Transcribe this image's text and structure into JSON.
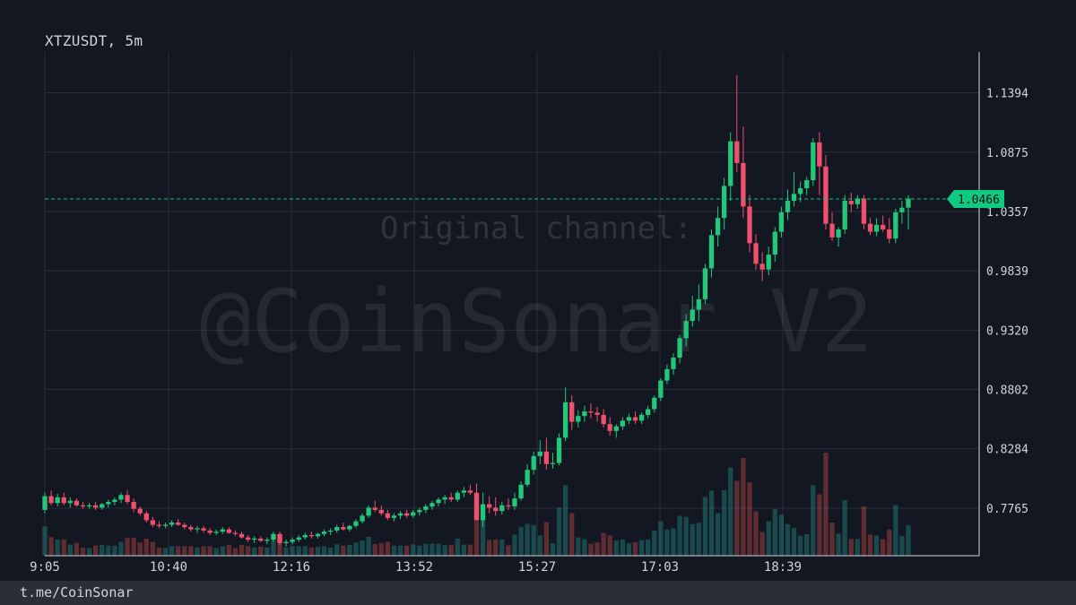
{
  "header": {
    "title": "XTZUSDT, 5m"
  },
  "watermark": {
    "line1": "Original channel:",
    "line2": "@CoinSonar V2"
  },
  "footer": {
    "link": "t.me/CoinSonar"
  },
  "colors": {
    "up": "#26a69a",
    "down": "#ef5350",
    "upBright": "#22c77a",
    "downBright": "#f0506e",
    "grid": "#2a2e39",
    "bg": "#131722",
    "price": "#0ecb81"
  },
  "chart_data": {
    "type": "candlestick",
    "symbol": "XTZUSDT",
    "interval": "5m",
    "ylim": [
      0.735,
      1.175
    ],
    "y_ticks": [
      0.7765,
      0.8284,
      0.8802,
      0.932,
      0.9839,
      1.0357,
      1.0875,
      1.1394
    ],
    "y_tick_labels": [
      "0.7765",
      "0.8284",
      "0.8802",
      "0.9320",
      "0.9839",
      "1.0357",
      "1.0875",
      "1.1394"
    ],
    "x_tick_labels": [
      "9:05",
      "10:40",
      "12:16",
      "13:52",
      "15:27",
      "17:03",
      "18:39"
    ],
    "last_price": 1.0466,
    "last_price_label": "1.0466",
    "grid": true,
    "candles": [
      [
        0.775,
        0.79,
        0.772,
        0.787
      ],
      [
        0.787,
        0.792,
        0.779,
        0.781
      ],
      [
        0.781,
        0.789,
        0.778,
        0.786
      ],
      [
        0.786,
        0.79,
        0.779,
        0.781
      ],
      [
        0.781,
        0.786,
        0.777,
        0.783
      ],
      [
        0.783,
        0.785,
        0.778,
        0.779
      ],
      [
        0.779,
        0.782,
        0.776,
        0.778
      ],
      [
        0.778,
        0.781,
        0.776,
        0.779
      ],
      [
        0.779,
        0.782,
        0.775,
        0.777
      ],
      [
        0.777,
        0.781,
        0.775,
        0.78
      ],
      [
        0.78,
        0.784,
        0.777,
        0.782
      ],
      [
        0.782,
        0.786,
        0.779,
        0.784
      ],
      [
        0.784,
        0.79,
        0.781,
        0.788
      ],
      [
        0.788,
        0.792,
        0.78,
        0.782
      ],
      [
        0.782,
        0.785,
        0.773,
        0.776
      ],
      [
        0.776,
        0.778,
        0.77,
        0.772
      ],
      [
        0.772,
        0.774,
        0.764,
        0.766
      ],
      [
        0.766,
        0.769,
        0.76,
        0.762
      ],
      [
        0.762,
        0.765,
        0.759,
        0.761
      ],
      [
        0.761,
        0.764,
        0.759,
        0.762
      ],
      [
        0.762,
        0.766,
        0.76,
        0.764
      ],
      [
        0.764,
        0.767,
        0.761,
        0.762
      ],
      [
        0.762,
        0.764,
        0.758,
        0.76
      ],
      [
        0.76,
        0.762,
        0.756,
        0.758
      ],
      [
        0.758,
        0.761,
        0.755,
        0.759
      ],
      [
        0.759,
        0.761,
        0.755,
        0.757
      ],
      [
        0.757,
        0.759,
        0.753,
        0.755
      ],
      [
        0.755,
        0.758,
        0.753,
        0.756
      ],
      [
        0.756,
        0.76,
        0.754,
        0.758
      ],
      [
        0.758,
        0.76,
        0.754,
        0.755
      ],
      [
        0.755,
        0.757,
        0.752,
        0.754
      ],
      [
        0.754,
        0.756,
        0.75,
        0.751
      ],
      [
        0.751,
        0.753,
        0.747,
        0.749
      ],
      [
        0.749,
        0.752,
        0.746,
        0.75
      ],
      [
        0.75,
        0.752,
        0.747,
        0.748
      ],
      [
        0.748,
        0.751,
        0.745,
        0.749
      ],
      [
        0.749,
        0.756,
        0.747,
        0.754
      ],
      [
        0.754,
        0.756,
        0.744,
        0.746
      ],
      [
        0.746,
        0.749,
        0.743,
        0.747
      ],
      [
        0.747,
        0.751,
        0.745,
        0.749
      ],
      [
        0.749,
        0.753,
        0.747,
        0.751
      ],
      [
        0.751,
        0.755,
        0.749,
        0.753
      ],
      [
        0.753,
        0.756,
        0.75,
        0.752
      ],
      [
        0.752,
        0.755,
        0.75,
        0.754
      ],
      [
        0.754,
        0.758,
        0.752,
        0.756
      ],
      [
        0.756,
        0.759,
        0.753,
        0.757
      ],
      [
        0.757,
        0.762,
        0.755,
        0.76
      ],
      [
        0.76,
        0.764,
        0.757,
        0.758
      ],
      [
        0.758,
        0.762,
        0.756,
        0.761
      ],
      [
        0.761,
        0.767,
        0.759,
        0.765
      ],
      [
        0.765,
        0.772,
        0.763,
        0.77
      ],
      [
        0.77,
        0.779,
        0.768,
        0.777
      ],
      [
        0.777,
        0.783,
        0.773,
        0.775
      ],
      [
        0.775,
        0.779,
        0.77,
        0.772
      ],
      [
        0.772,
        0.775,
        0.766,
        0.768
      ],
      [
        0.768,
        0.772,
        0.765,
        0.77
      ],
      [
        0.77,
        0.774,
        0.767,
        0.772
      ],
      [
        0.772,
        0.775,
        0.768,
        0.77
      ],
      [
        0.77,
        0.775,
        0.768,
        0.773
      ],
      [
        0.773,
        0.777,
        0.77,
        0.775
      ],
      [
        0.775,
        0.78,
        0.772,
        0.778
      ],
      [
        0.778,
        0.783,
        0.775,
        0.781
      ],
      [
        0.781,
        0.786,
        0.778,
        0.784
      ],
      [
        0.784,
        0.788,
        0.78,
        0.786
      ],
      [
        0.786,
        0.79,
        0.782,
        0.784
      ],
      [
        0.784,
        0.792,
        0.782,
        0.79
      ],
      [
        0.79,
        0.795,
        0.786,
        0.792
      ],
      [
        0.792,
        0.797,
        0.788,
        0.79
      ],
      [
        0.79,
        0.798,
        0.77,
        0.766
      ],
      [
        0.766,
        0.79,
        0.76,
        0.78
      ],
      [
        0.78,
        0.787,
        0.772,
        0.777
      ],
      [
        0.777,
        0.786,
        0.77,
        0.774
      ],
      [
        0.774,
        0.782,
        0.771,
        0.779
      ],
      [
        0.779,
        0.785,
        0.775,
        0.778
      ],
      [
        0.778,
        0.79,
        0.775,
        0.785
      ],
      [
        0.785,
        0.8,
        0.783,
        0.797
      ],
      [
        0.797,
        0.815,
        0.795,
        0.81
      ],
      [
        0.81,
        0.826,
        0.806,
        0.822
      ],
      [
        0.822,
        0.836,
        0.815,
        0.826
      ],
      [
        0.826,
        0.838,
        0.81,
        0.815
      ],
      [
        0.815,
        0.825,
        0.811,
        0.816
      ],
      [
        0.816,
        0.842,
        0.814,
        0.838
      ],
      [
        0.838,
        0.882,
        0.835,
        0.869
      ],
      [
        0.869,
        0.875,
        0.845,
        0.852
      ],
      [
        0.852,
        0.862,
        0.847,
        0.857
      ],
      [
        0.857,
        0.866,
        0.852,
        0.861
      ],
      [
        0.861,
        0.868,
        0.855,
        0.86
      ],
      [
        0.86,
        0.865,
        0.852,
        0.858
      ],
      [
        0.858,
        0.863,
        0.847,
        0.85
      ],
      [
        0.85,
        0.856,
        0.84,
        0.844
      ],
      [
        0.844,
        0.85,
        0.838,
        0.848
      ],
      [
        0.848,
        0.856,
        0.845,
        0.853
      ],
      [
        0.853,
        0.859,
        0.85,
        0.856
      ],
      [
        0.856,
        0.861,
        0.85,
        0.853
      ],
      [
        0.853,
        0.86,
        0.85,
        0.858
      ],
      [
        0.858,
        0.866,
        0.855,
        0.863
      ],
      [
        0.863,
        0.875,
        0.86,
        0.873
      ],
      [
        0.873,
        0.89,
        0.87,
        0.888
      ],
      [
        0.888,
        0.902,
        0.885,
        0.898
      ],
      [
        0.898,
        0.912,
        0.893,
        0.908
      ],
      [
        0.908,
        0.928,
        0.903,
        0.925
      ],
      [
        0.925,
        0.946,
        0.918,
        0.94
      ],
      [
        0.94,
        0.962,
        0.935,
        0.95
      ],
      [
        0.95,
        0.972,
        0.94,
        0.959
      ],
      [
        0.959,
        0.99,
        0.955,
        0.986
      ],
      [
        0.986,
        1.02,
        0.978,
        1.015
      ],
      [
        1.015,
        1.04,
        1.005,
        1.03
      ],
      [
        1.03,
        1.065,
        1.02,
        1.058
      ],
      [
        1.058,
        1.105,
        1.045,
        1.097
      ],
      [
        1.097,
        1.155,
        1.07,
        1.078
      ],
      [
        1.078,
        1.11,
        1.03,
        1.04
      ],
      [
        1.04,
        1.05,
        1.0,
        1.008
      ],
      [
        1.008,
        1.016,
        0.985,
        0.99
      ],
      [
        0.99,
        1.0,
        0.975,
        0.985
      ],
      [
        0.985,
        1.005,
        0.98,
        0.998
      ],
      [
        0.998,
        1.022,
        0.992,
        1.018
      ],
      [
        1.018,
        1.04,
        1.013,
        1.035
      ],
      [
        1.035,
        1.055,
        1.028,
        1.045
      ],
      [
        1.045,
        1.07,
        1.04,
        1.051
      ],
      [
        1.051,
        1.062,
        1.044,
        1.056
      ],
      [
        1.056,
        1.066,
        1.05,
        1.063
      ],
      [
        1.063,
        1.1,
        1.058,
        1.096
      ],
      [
        1.096,
        1.105,
        1.05,
        1.075
      ],
      [
        1.075,
        1.085,
        1.02,
        1.025
      ],
      [
        1.025,
        1.035,
        1.01,
        1.013
      ],
      [
        1.013,
        1.022,
        1.005,
        1.02
      ],
      [
        1.02,
        1.05,
        1.016,
        1.045
      ],
      [
        1.045,
        1.052,
        1.035,
        1.042
      ],
      [
        1.042,
        1.05,
        1.038,
        1.047
      ],
      [
        1.047,
        1.05,
        1.02,
        1.025
      ],
      [
        1.025,
        1.03,
        1.015,
        1.018
      ],
      [
        1.018,
        1.03,
        1.014,
        1.024
      ],
      [
        1.024,
        1.032,
        1.018,
        1.02
      ],
      [
        1.02,
        1.03,
        1.008,
        1.012
      ],
      [
        1.012,
        1.038,
        1.008,
        1.035
      ],
      [
        1.035,
        1.045,
        1.025,
        1.039
      ],
      [
        1.039,
        1.05,
        1.02,
        1.047
      ]
    ],
    "volume_scale_note": "relative volume bars"
  }
}
